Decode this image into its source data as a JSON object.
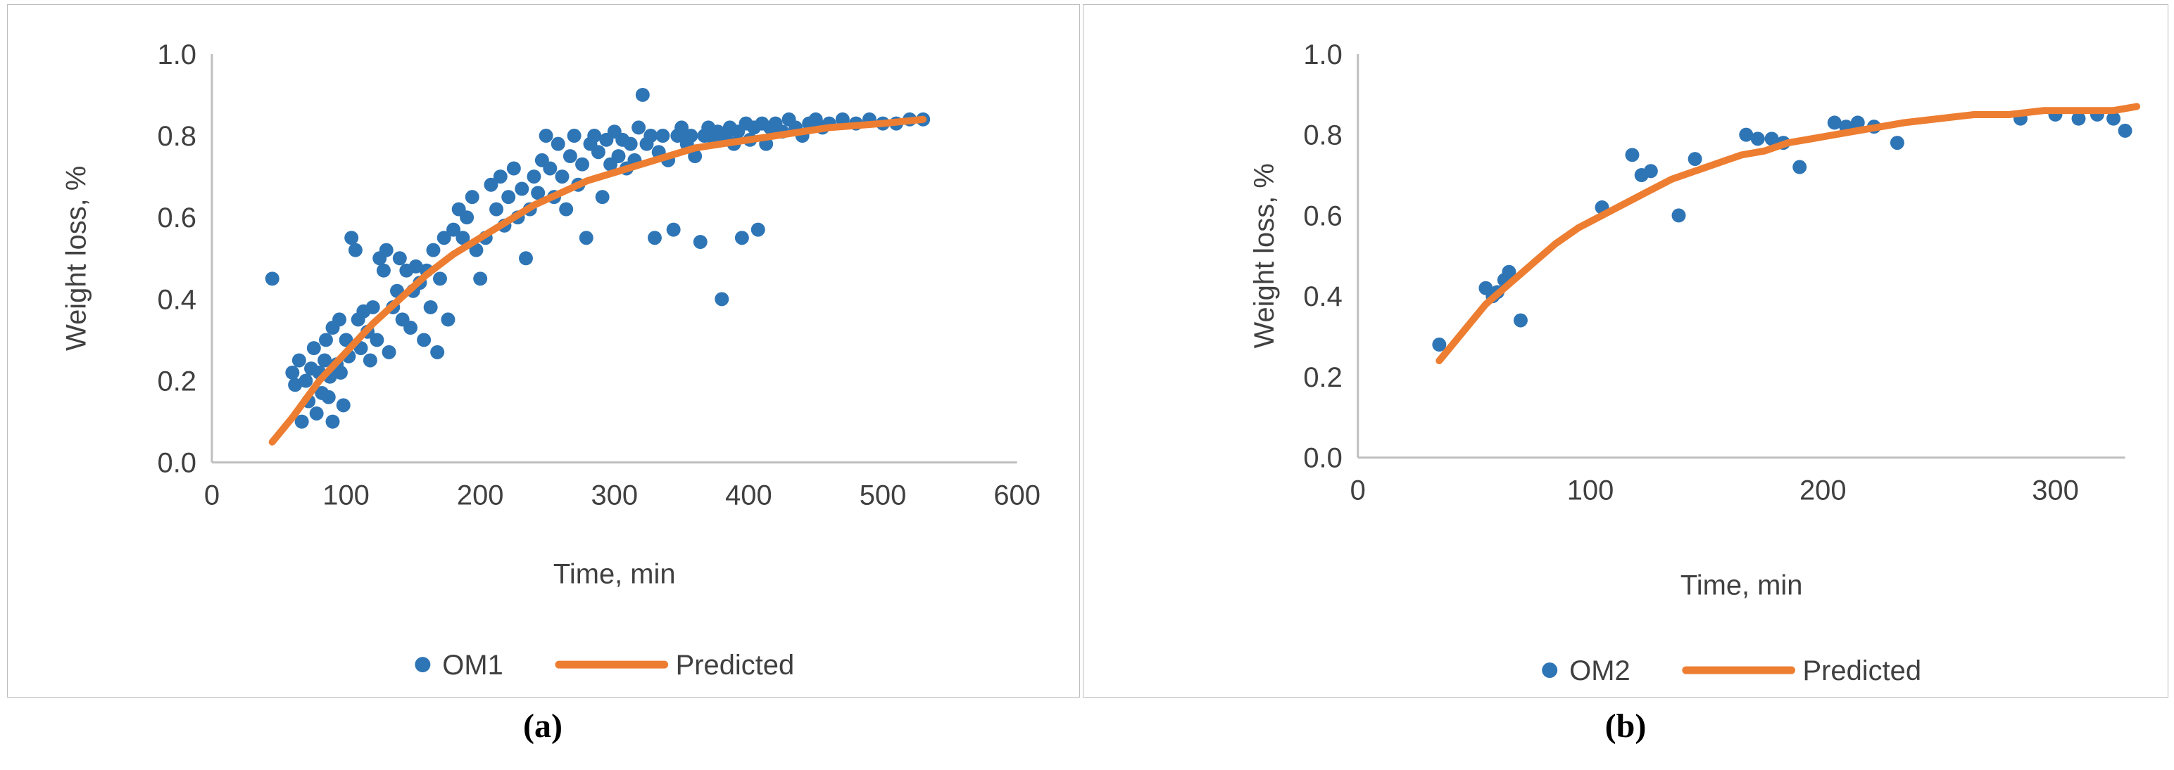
{
  "figure": {
    "captions": {
      "a": "(a)",
      "b": "(b)"
    }
  },
  "colors": {
    "scatter": "#2E75B6",
    "predicted": "#ED7D31",
    "axis": "#BFBFBF",
    "text": "#404040"
  },
  "chart_data": [
    {
      "type": "scatter",
      "panel": "a",
      "title": "",
      "xlabel": "Time, min",
      "ylabel": "Weight loss, %",
      "xlim": [
        0,
        600
      ],
      "ylim": [
        0,
        1.0
      ],
      "xticks": [
        0,
        100,
        200,
        300,
        400,
        500,
        600
      ],
      "ytick_labels": [
        "0.0",
        "0.2",
        "0.4",
        "0.6",
        "0.8",
        "1.0"
      ],
      "grid": false,
      "legend_position": "bottom",
      "legend": [
        {
          "label": "OM1",
          "marker": "point"
        },
        {
          "label": "Predicted",
          "marker": "line"
        }
      ],
      "series": [
        {
          "name": "OM1",
          "type": "scatter",
          "points": [
            [
              45,
              0.45
            ],
            [
              60,
              0.22
            ],
            [
              62,
              0.19
            ],
            [
              65,
              0.25
            ],
            [
              67,
              0.1
            ],
            [
              70,
              0.2
            ],
            [
              72,
              0.15
            ],
            [
              74,
              0.23
            ],
            [
              76,
              0.28
            ],
            [
              78,
              0.12
            ],
            [
              80,
              0.22
            ],
            [
              82,
              0.17
            ],
            [
              84,
              0.25
            ],
            [
              85,
              0.3
            ],
            [
              87,
              0.16
            ],
            [
              88,
              0.21
            ],
            [
              90,
              0.33
            ],
            [
              90,
              0.1
            ],
            [
              93,
              0.24
            ],
            [
              95,
              0.35
            ],
            [
              96,
              0.22
            ],
            [
              98,
              0.14
            ],
            [
              100,
              0.3
            ],
            [
              102,
              0.26
            ],
            [
              104,
              0.55
            ],
            [
              107,
              0.52
            ],
            [
              109,
              0.35
            ],
            [
              111,
              0.28
            ],
            [
              113,
              0.37
            ],
            [
              116,
              0.32
            ],
            [
              118,
              0.25
            ],
            [
              120,
              0.38
            ],
            [
              123,
              0.3
            ],
            [
              125,
              0.5
            ],
            [
              128,
              0.47
            ],
            [
              130,
              0.52
            ],
            [
              132,
              0.27
            ],
            [
              135,
              0.38
            ],
            [
              138,
              0.42
            ],
            [
              140,
              0.5
            ],
            [
              142,
              0.35
            ],
            [
              145,
              0.47
            ],
            [
              148,
              0.33
            ],
            [
              150,
              0.42
            ],
            [
              152,
              0.48
            ],
            [
              155,
              0.44
            ],
            [
              158,
              0.3
            ],
            [
              160,
              0.47
            ],
            [
              163,
              0.38
            ],
            [
              165,
              0.52
            ],
            [
              168,
              0.27
            ],
            [
              170,
              0.45
            ],
            [
              173,
              0.55
            ],
            [
              176,
              0.35
            ],
            [
              180,
              0.57
            ],
            [
              184,
              0.62
            ],
            [
              187,
              0.55
            ],
            [
              190,
              0.6
            ],
            [
              194,
              0.65
            ],
            [
              197,
              0.52
            ],
            [
              200,
              0.45
            ],
            [
              204,
              0.55
            ],
            [
              208,
              0.68
            ],
            [
              212,
              0.62
            ],
            [
              215,
              0.7
            ],
            [
              218,
              0.58
            ],
            [
              221,
              0.65
            ],
            [
              225,
              0.72
            ],
            [
              228,
              0.6
            ],
            [
              231,
              0.67
            ],
            [
              234,
              0.5
            ],
            [
              237,
              0.62
            ],
            [
              240,
              0.7
            ],
            [
              243,
              0.66
            ],
            [
              246,
              0.74
            ],
            [
              249,
              0.8
            ],
            [
              252,
              0.72
            ],
            [
              255,
              0.65
            ],
            [
              258,
              0.78
            ],
            [
              261,
              0.7
            ],
            [
              264,
              0.62
            ],
            [
              267,
              0.75
            ],
            [
              270,
              0.8
            ],
            [
              273,
              0.68
            ],
            [
              276,
              0.73
            ],
            [
              279,
              0.55
            ],
            [
              282,
              0.78
            ],
            [
              285,
              0.8
            ],
            [
              288,
              0.76
            ],
            [
              291,
              0.65
            ],
            [
              294,
              0.79
            ],
            [
              297,
              0.73
            ],
            [
              300,
              0.81
            ],
            [
              303,
              0.75
            ],
            [
              306,
              0.79
            ],
            [
              309,
              0.72
            ],
            [
              312,
              0.78
            ],
            [
              315,
              0.74
            ],
            [
              318,
              0.82
            ],
            [
              321,
              0.9
            ],
            [
              324,
              0.78
            ],
            [
              327,
              0.8
            ],
            [
              330,
              0.55
            ],
            [
              333,
              0.76
            ],
            [
              336,
              0.8
            ],
            [
              340,
              0.74
            ],
            [
              344,
              0.57
            ],
            [
              347,
              0.8
            ],
            [
              350,
              0.82
            ],
            [
              354,
              0.78
            ],
            [
              357,
              0.8
            ],
            [
              360,
              0.75
            ],
            [
              364,
              0.54
            ],
            [
              367,
              0.8
            ],
            [
              370,
              0.82
            ],
            [
              374,
              0.79
            ],
            [
              377,
              0.81
            ],
            [
              380,
              0.4
            ],
            [
              383,
              0.8
            ],
            [
              386,
              0.82
            ],
            [
              389,
              0.78
            ],
            [
              392,
              0.81
            ],
            [
              395,
              0.55
            ],
            [
              398,
              0.83
            ],
            [
              401,
              0.79
            ],
            [
              404,
              0.82
            ],
            [
              407,
              0.57
            ],
            [
              410,
              0.83
            ],
            [
              413,
              0.78
            ],
            [
              416,
              0.82
            ],
            [
              420,
              0.83
            ],
            [
              425,
              0.81
            ],
            [
              430,
              0.84
            ],
            [
              435,
              0.82
            ],
            [
              440,
              0.8
            ],
            [
              445,
              0.83
            ],
            [
              450,
              0.84
            ],
            [
              455,
              0.82
            ],
            [
              460,
              0.83
            ],
            [
              470,
              0.84
            ],
            [
              480,
              0.83
            ],
            [
              490,
              0.84
            ],
            [
              500,
              0.83
            ],
            [
              510,
              0.83
            ],
            [
              520,
              0.84
            ],
            [
              530,
              0.84
            ]
          ]
        },
        {
          "name": "Predicted",
          "type": "line",
          "points": [
            [
              45,
              0.05
            ],
            [
              60,
              0.11
            ],
            [
              80,
              0.2
            ],
            [
              100,
              0.27
            ],
            [
              120,
              0.34
            ],
            [
              140,
              0.4
            ],
            [
              160,
              0.46
            ],
            [
              180,
              0.51
            ],
            [
              200,
              0.55
            ],
            [
              220,
              0.59
            ],
            [
              240,
              0.63
            ],
            [
              260,
              0.66
            ],
            [
              280,
              0.69
            ],
            [
              300,
              0.71
            ],
            [
              320,
              0.73
            ],
            [
              340,
              0.75
            ],
            [
              360,
              0.77
            ],
            [
              380,
              0.78
            ],
            [
              400,
              0.79
            ],
            [
              420,
              0.8
            ],
            [
              440,
              0.81
            ],
            [
              460,
              0.82
            ],
            [
              480,
              0.825
            ],
            [
              500,
              0.83
            ],
            [
              515,
              0.835
            ],
            [
              530,
              0.84
            ]
          ]
        }
      ]
    },
    {
      "type": "scatter",
      "panel": "b",
      "title": "",
      "xlabel": "Time, min",
      "ylabel": "Weight loss, %",
      "xlim": [
        0,
        330
      ],
      "ylim": [
        0,
        1.0
      ],
      "xticks": [
        0,
        100,
        200,
        300
      ],
      "ytick_labels": [
        "0.0",
        "0.2",
        "0.4",
        "0.6",
        "0.8",
        "1.0"
      ],
      "grid": false,
      "legend_position": "bottom",
      "legend": [
        {
          "label": "OM2",
          "marker": "point"
        },
        {
          "label": "Predicted",
          "marker": "line"
        }
      ],
      "series": [
        {
          "name": "OM2",
          "type": "scatter",
          "points": [
            [
              35,
              0.28
            ],
            [
              55,
              0.42
            ],
            [
              58,
              0.4
            ],
            [
              60,
              0.41
            ],
            [
              63,
              0.44
            ],
            [
              65,
              0.46
            ],
            [
              70,
              0.34
            ],
            [
              105,
              0.62
            ],
            [
              118,
              0.75
            ],
            [
              122,
              0.7
            ],
            [
              126,
              0.71
            ],
            [
              138,
              0.6
            ],
            [
              145,
              0.74
            ],
            [
              167,
              0.8
            ],
            [
              172,
              0.79
            ],
            [
              178,
              0.79
            ],
            [
              183,
              0.78
            ],
            [
              190,
              0.72
            ],
            [
              205,
              0.83
            ],
            [
              210,
              0.82
            ],
            [
              215,
              0.83
            ],
            [
              222,
              0.82
            ],
            [
              232,
              0.78
            ],
            [
              285,
              0.84
            ],
            [
              300,
              0.85
            ],
            [
              310,
              0.84
            ],
            [
              318,
              0.85
            ],
            [
              325,
              0.84
            ],
            [
              330,
              0.81
            ]
          ]
        },
        {
          "name": "Predicted",
          "type": "line",
          "points": [
            [
              35,
              0.24
            ],
            [
              45,
              0.31
            ],
            [
              55,
              0.38
            ],
            [
              65,
              0.43
            ],
            [
              75,
              0.48
            ],
            [
              85,
              0.53
            ],
            [
              95,
              0.57
            ],
            [
              105,
              0.6
            ],
            [
              115,
              0.63
            ],
            [
              125,
              0.66
            ],
            [
              135,
              0.69
            ],
            [
              145,
              0.71
            ],
            [
              155,
              0.73
            ],
            [
              165,
              0.75
            ],
            [
              175,
              0.76
            ],
            [
              185,
              0.78
            ],
            [
              195,
              0.79
            ],
            [
              205,
              0.8
            ],
            [
              215,
              0.81
            ],
            [
              225,
              0.82
            ],
            [
              235,
              0.83
            ],
            [
              250,
              0.84
            ],
            [
              265,
              0.85
            ],
            [
              280,
              0.85
            ],
            [
              295,
              0.86
            ],
            [
              310,
              0.86
            ],
            [
              325,
              0.86
            ],
            [
              335,
              0.87
            ]
          ]
        }
      ]
    }
  ]
}
